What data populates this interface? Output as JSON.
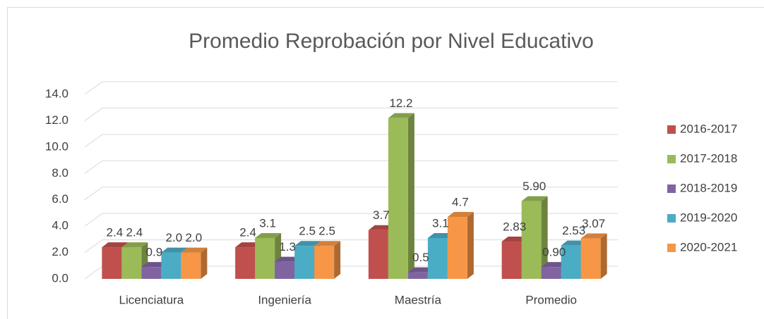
{
  "chart_data": {
    "type": "bar3d",
    "title": "Promedio Reprobación por Nivel Educativo",
    "categories": [
      "Licenciatura",
      "Ingeniería",
      "Maestría",
      "Promedio"
    ],
    "series": [
      {
        "name": "2016-2017",
        "color": "#c0504d",
        "values": [
          2.4,
          2.4,
          3.7,
          2.83
        ],
        "value_labels": [
          "2.4",
          "2.4",
          "3.7",
          "2.83"
        ]
      },
      {
        "name": "2017-2018",
        "color": "#9bbb59",
        "values": [
          2.4,
          3.1,
          12.2,
          5.9
        ],
        "value_labels": [
          "2.4",
          "3.1",
          "12.2",
          "5.90"
        ]
      },
      {
        "name": "2018-2019",
        "color": "#8064a2",
        "values": [
          0.9,
          1.3,
          0.5,
          0.9
        ],
        "value_labels": [
          "0.9",
          "1.3",
          "0.5",
          "0.90"
        ]
      },
      {
        "name": "2019-2020",
        "color": "#4bacc6",
        "values": [
          2.0,
          2.5,
          3.1,
          2.53
        ],
        "value_labels": [
          "2.0",
          "2.5",
          "3.1",
          "2.53"
        ]
      },
      {
        "name": "2020-2021",
        "color": "#f79646",
        "values": [
          2.0,
          2.5,
          4.7,
          3.07
        ],
        "value_labels": [
          "2.0",
          "2.5",
          "4.7",
          "3.07"
        ]
      }
    ],
    "ylim": [
      0,
      14
    ],
    "yticks": [
      {
        "value": 0,
        "label": "0.0"
      },
      {
        "value": 2,
        "label": "2.0"
      },
      {
        "value": 4,
        "label": "4.0"
      },
      {
        "value": 6,
        "label": "6.0"
      },
      {
        "value": 8,
        "label": "8.0"
      },
      {
        "value": 10,
        "label": "10.0"
      },
      {
        "value": 12,
        "label": "12.0"
      },
      {
        "value": 14,
        "label": "14.0"
      }
    ],
    "grid": true,
    "legend": "right"
  }
}
